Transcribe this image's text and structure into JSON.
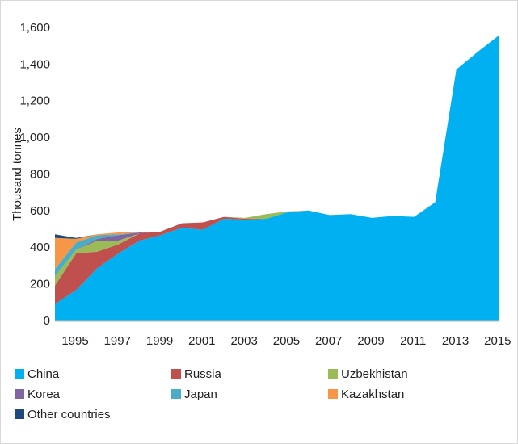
{
  "chart_data": {
    "type": "stacked_area",
    "y_label": "Thousand tonnes",
    "categories": [
      "1995",
      null,
      "1997",
      null,
      "1999",
      null,
      "2001",
      null,
      "2003",
      null,
      "2005",
      null,
      "2007",
      null,
      "2009",
      null,
      "2011",
      null,
      "2013",
      null,
      "2015",
      null
    ],
    "series": [
      {
        "name": "China",
        "color": "#00b0f0",
        "values": [
          95,
          170,
          290,
          370,
          440,
          470,
          510,
          500,
          560,
          555,
          560,
          595,
          605,
          580,
          585,
          565,
          575,
          570,
          650,
          1375,
          1470,
          1560
        ]
      },
      {
        "name": "Russia",
        "color": "#c0504d",
        "values": [
          100,
          200,
          90,
          50,
          40,
          20,
          25,
          40,
          10,
          5,
          0,
          0,
          0,
          0,
          0,
          0,
          0,
          0,
          0,
          0,
          0,
          0
        ]
      },
      {
        "name": "Uzbekhistan",
        "color": "#9bbb59",
        "values": [
          50,
          20,
          60,
          20,
          0,
          0,
          0,
          0,
          0,
          5,
          25,
          5,
          0,
          0,
          0,
          0,
          0,
          0,
          0,
          0,
          0,
          0
        ]
      },
      {
        "name": "Korea",
        "color": "#8064a2",
        "values": [
          0,
          0,
          10,
          30,
          5,
          0,
          0,
          0,
          0,
          0,
          0,
          0,
          0,
          0,
          0,
          0,
          0,
          0,
          0,
          0,
          0,
          0
        ]
      },
      {
        "name": "Japan",
        "color": "#4bacc6",
        "values": [
          40,
          40,
          20,
          5,
          0,
          0,
          0,
          0,
          0,
          0,
          0,
          0,
          0,
          0,
          0,
          0,
          0,
          0,
          0,
          0,
          0,
          0
        ]
      },
      {
        "name": "Kazakhstan",
        "color": "#f79646",
        "values": [
          170,
          20,
          5,
          10,
          0,
          0,
          0,
          0,
          0,
          0,
          0,
          0,
          0,
          0,
          0,
          0,
          0,
          0,
          0,
          0,
          0,
          0
        ]
      },
      {
        "name": "Other countries",
        "color": "#1f497d",
        "values": [
          20,
          5,
          0,
          0,
          0,
          0,
          0,
          0,
          0,
          0,
          0,
          0,
          0,
          0,
          0,
          0,
          0,
          0,
          0,
          0,
          0,
          0
        ]
      }
    ],
    "ylim": [
      0,
      1600
    ],
    "yticks": [
      0,
      200,
      400,
      600,
      800,
      {
        "value": 1000,
        "label": "1,000"
      },
      {
        "value": 1200,
        "label": "1,200"
      },
      {
        "value": 1400,
        "label": "1,400"
      },
      {
        "value": 1600,
        "label": "1,600"
      }
    ],
    "grid": false,
    "legend": "bottom"
  }
}
